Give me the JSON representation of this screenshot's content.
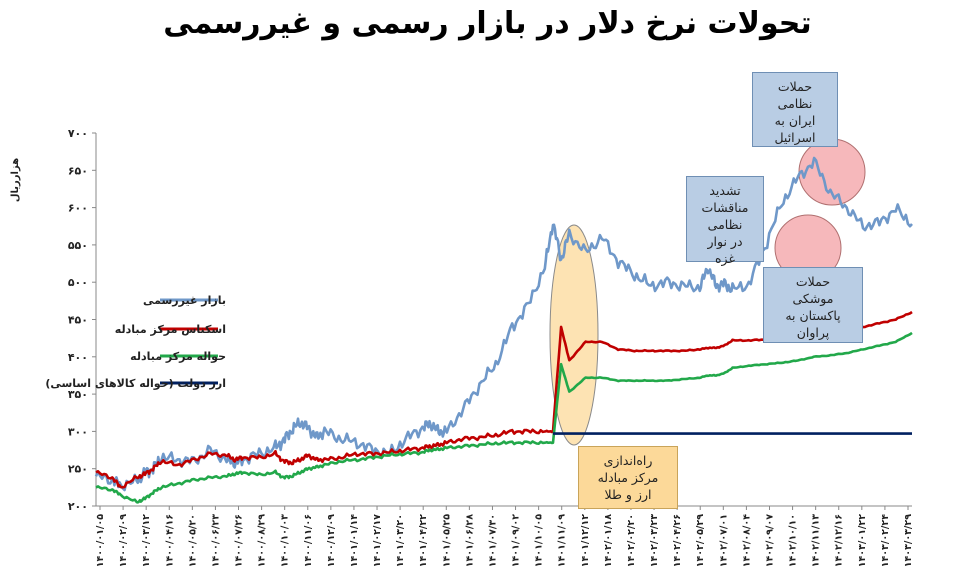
{
  "chart_data": {
    "type": "line",
    "title": "تحولات نرخ دلار در بازار رسمی و غیررسمی",
    "ylabel": "هزارریال",
    "ylim": [
      200,
      700
    ],
    "y_ticks": [
      "۲۰۰",
      "۲۵۰",
      "۳۰۰",
      "۳۵۰",
      "۴۰۰",
      "۴۵۰",
      "۵۰۰",
      "۵۵۰",
      "۶۰۰",
      "۶۵۰",
      "۷۰۰"
    ],
    "x_ticks": [
      "۱۴۰۰/۰۱/۰۵",
      "۱۴۰۰/۰۲/۰۹",
      "۱۴۰۰/۰۳/۱۲",
      "۱۴۰۰/۰۴/۱۶",
      "۱۴۰۰/۰۵/۲۰",
      "۱۴۰۰/۰۶/۲۳",
      "۱۴۰۰/۰۷/۲۶",
      "۱۴۰۰/۰۸/۲۹",
      "۱۴۰۰/۱۰/۰۳",
      "۱۴۰۰/۱۱/۰۶",
      "۱۴۰۰/۱۲/۰۹",
      "۱۴۰۱/۰۱/۱۴",
      "۱۴۰۱/۰۲/۱۷",
      "۱۴۰۱/۰۳/۲۰",
      "۱۴۰۱/۰۴/۲۲",
      "۱۴۰۱/۰۵/۲۵",
      "۱۴۰۱/۰۶/۲۸",
      "۱۴۰۱/۰۷/۳۰",
      "۱۴۰۱/۰۹/۰۲",
      "۱۴۰۱/۱۰/۰۵",
      "۱۴۰۱/۱۱/۰۹",
      "۱۴۰۱/۱۲/۱۲",
      "۱۴۰۲/۰۱/۱۸",
      "۱۴۰۲/۰۲/۲۰",
      "۱۴۰۲/۰۳/۲۳",
      "۱۴۰۲/۰۴/۲۶",
      "۱۴۰۲/۰۵/۲۹",
      "۱۴۰۲/۰۷/۰۱",
      "۱۴۰۲/۰۸/۰۴",
      "۱۴۰۲/۰۹/۰۷",
      "۱۴۰۲/۱۰/۱۰",
      "۱۴۰۲/۱۱/۱۳",
      "۱۴۰۲/۱۲/۱۶",
      "۱۴۰۳/۰۱/۲۲",
      "۱۴۰۳/۰۲/۲۴",
      "۱۴۰۳/۰۳/۲۹"
    ],
    "series": [
      {
        "name": "بازار غیررسمی",
        "color": "#6f98c9",
        "x": [
          0,
          2,
          3,
          5,
          6,
          7,
          8,
          10,
          12,
          14,
          16,
          17,
          18,
          20,
          22,
          23,
          24,
          25,
          26,
          27,
          28,
          30,
          32,
          34,
          36,
          38,
          40,
          41,
          42,
          43,
          45,
          47,
          49,
          51,
          53,
          55,
          56,
          57,
          58,
          60,
          62,
          64,
          66,
          68,
          70,
          72,
          74,
          75,
          76,
          77,
          78,
          80,
          82,
          84,
          86,
          88,
          90,
          92,
          94,
          96,
          98,
          100
        ],
        "values": [
          240,
          235,
          228,
          233,
          245,
          250,
          265,
          262,
          260,
          275,
          262,
          258,
          262,
          270,
          278,
          288,
          302,
          312,
          305,
          292,
          300,
          290,
          285,
          275,
          270,
          290,
          305,
          310,
          300,
          300,
          330,
          362,
          390,
          440,
          470,
          520,
          580,
          530,
          565,
          540,
          560,
          528,
          510,
          495,
          500,
          495,
          493,
          520,
          495,
          498,
          490,
          497,
          548,
          605,
          640,
          662,
          620,
          600,
          575,
          580,
          598,
          578
        ]
      },
      {
        "name": "اسکناس مرکز مبادله",
        "color": "#c00000",
        "x": [
          0,
          2,
          3,
          5,
          6,
          7,
          8,
          10,
          12,
          14,
          16,
          17,
          18,
          20,
          22,
          23,
          24,
          25,
          26,
          27,
          28,
          30,
          32,
          34,
          36,
          38,
          40,
          41,
          42,
          43,
          45,
          47,
          49,
          51,
          53,
          55,
          56,
          57,
          58,
          60,
          62,
          64,
          66,
          68,
          70,
          72,
          74,
          75,
          76,
          77,
          78,
          80,
          82,
          84,
          86,
          88,
          90,
          92,
          94,
          96,
          98,
          100
        ],
        "values": [
          245,
          238,
          225,
          238,
          243,
          250,
          260,
          255,
          262,
          270,
          268,
          262,
          265,
          265,
          270,
          260,
          258,
          262,
          268,
          262,
          262,
          265,
          270,
          270,
          272,
          275,
          278,
          280,
          282,
          285,
          290,
          292,
          295,
          300,
          300,
          300,
          300,
          440,
          395,
          420,
          420,
          410,
          408,
          408,
          408,
          408,
          410,
          412,
          412,
          415,
          422,
          422,
          423,
          422,
          425,
          430,
          432,
          435,
          440,
          445,
          450,
          460
        ]
      },
      {
        "name": "حواله مرکز مبادله",
        "color": "#22a84a",
        "x": [
          0,
          2,
          3,
          5,
          6,
          7,
          8,
          10,
          12,
          14,
          16,
          17,
          18,
          20,
          22,
          23,
          24,
          25,
          26,
          27,
          28,
          30,
          32,
          34,
          36,
          38,
          40,
          41,
          42,
          43,
          45,
          47,
          49,
          51,
          53,
          55,
          56,
          57,
          58,
          60,
          62,
          64,
          66,
          68,
          70,
          72,
          74,
          75,
          76,
          77,
          78,
          80,
          82,
          84,
          86,
          88,
          90,
          92,
          94,
          96,
          98,
          100
        ],
        "values": [
          225,
          222,
          215,
          205,
          210,
          218,
          225,
          230,
          235,
          238,
          240,
          243,
          245,
          242,
          245,
          238,
          240,
          245,
          250,
          252,
          255,
          260,
          262,
          265,
          268,
          270,
          272,
          275,
          276,
          278,
          280,
          282,
          284,
          285,
          285,
          285,
          285,
          390,
          353,
          372,
          372,
          368,
          368,
          368,
          368,
          370,
          372,
          375,
          375,
          378,
          385,
          388,
          390,
          392,
          395,
          400,
          402,
          405,
          410,
          415,
          420,
          432
        ]
      },
      {
        "name": "ارز دولت (حواله کالاهای اساسی)",
        "color": "#002060",
        "x": [
          56,
          100
        ],
        "values": [
          297,
          297
        ]
      }
    ],
    "annotations": [
      {
        "text": "حملات\nنظامی\nایران به\nاسرائیل"
      },
      {
        "text": "تشدید\nمناقشات\nنظامی\nدر نوار\nغزه"
      },
      {
        "text": "حملات\nموشکی\nپاکستان به\nپراوان"
      },
      {
        "text": "راه‌اندازی\nمرکز مبادله\nارز و طلا"
      }
    ],
    "legend_position": "middle-left",
    "grid": false
  }
}
